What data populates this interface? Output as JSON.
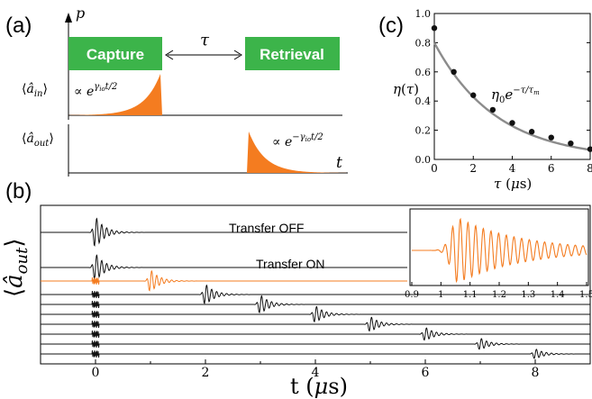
{
  "colors": {
    "green": "#3cb44a",
    "orange": "#f47c20",
    "trace_black": "#111111",
    "fit_gray": "#8c8c8c"
  },
  "panel_a": {
    "label": "(a)",
    "p_axis": "p",
    "t_axis": "t",
    "capture": "Capture",
    "retrieval": "Retrieval",
    "tau": "τ",
    "a_in_label": "⟨â_in⟩",
    "a_in_formula": "∝ e^(γ_io t/2)",
    "a_out_label": "⟨â_out⟩",
    "a_out_formula": "∝ e^(−γ_io t/2)"
  },
  "panel_b": {
    "label": "(b)",
    "ylabel": "⟨â_out⟩",
    "transfer_off": "Transfer OFF",
    "transfer_on": "Transfer ON",
    "xlabel": "t (μs)",
    "xlim": [
      -1.0,
      9.0
    ],
    "xticks": [
      "0",
      "2",
      "4",
      "6",
      "8"
    ],
    "echo_times_us": [
      0,
      1,
      2,
      3,
      4,
      5,
      6,
      7,
      8
    ],
    "highlighted_echo_us": 1,
    "inset": {
      "xlim": [
        0.9,
        1.5
      ],
      "xticks": [
        "0.9",
        "1",
        "1.1",
        "1.2",
        "1.3",
        "1.4",
        "1.5"
      ]
    }
  },
  "panel_c": {
    "label": "(c)",
    "ylabel": "η(τ)",
    "xlabel": "τ (μs)",
    "fit_label": "η₀e^(−τ/τ_m)",
    "yticks": [
      "0.0",
      "0.2",
      "0.4",
      "0.6",
      "0.8",
      "1.0"
    ],
    "xticks": [
      "0",
      "2",
      "4",
      "6",
      "8"
    ]
  },
  "chart_data": [
    {
      "type": "scatter",
      "panel": "c",
      "xlabel": "τ (μs)",
      "ylabel": "η(τ)",
      "xlim": [
        0,
        8
      ],
      "ylim": [
        0,
        1
      ],
      "series": [
        {
          "x": [
            0,
            1,
            2,
            3,
            4,
            5,
            6,
            7,
            8
          ],
          "y": [
            0.9,
            0.6,
            0.44,
            0.34,
            0.25,
            0.19,
            0.15,
            0.11,
            0.07
          ]
        }
      ],
      "fit": {
        "eta0": 0.8,
        "tau_m_us": 3.2
      }
    }
  ]
}
